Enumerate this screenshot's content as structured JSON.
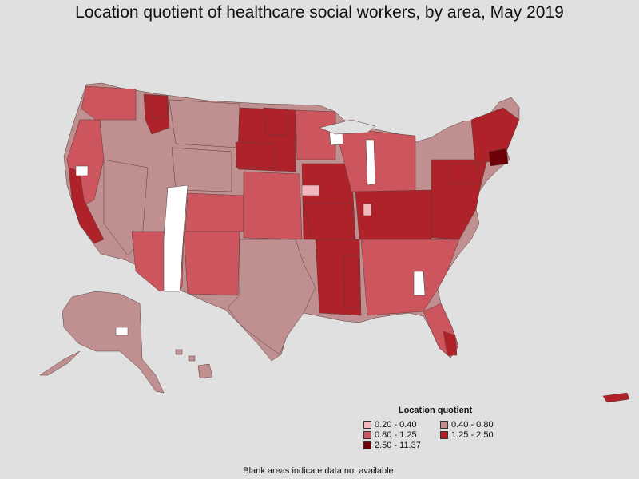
{
  "title": "Location quotient of healthcare social workers, by area, May 2019",
  "legend": {
    "title": "Location quotient",
    "items": [
      {
        "label": "0.20 - 0.40",
        "color": "#f4b6bd"
      },
      {
        "label": "0.40 - 0.80",
        "color": "#c09090"
      },
      {
        "label": "0.80 - 1.25",
        "color": "#cc555e"
      },
      {
        "label": "1.25 - 2.50",
        "color": "#b0222a"
      },
      {
        "label": "2.50 - 11.37",
        "color": "#6e0008"
      }
    ]
  },
  "footnote": "Blank areas indicate data not available.",
  "map_colors": {
    "q1": "#f4b6bd",
    "q2": "#c09090",
    "q3": "#cc555e",
    "q4": "#b0222a",
    "q5": "#6e0008",
    "blank": "#ffffff"
  }
}
